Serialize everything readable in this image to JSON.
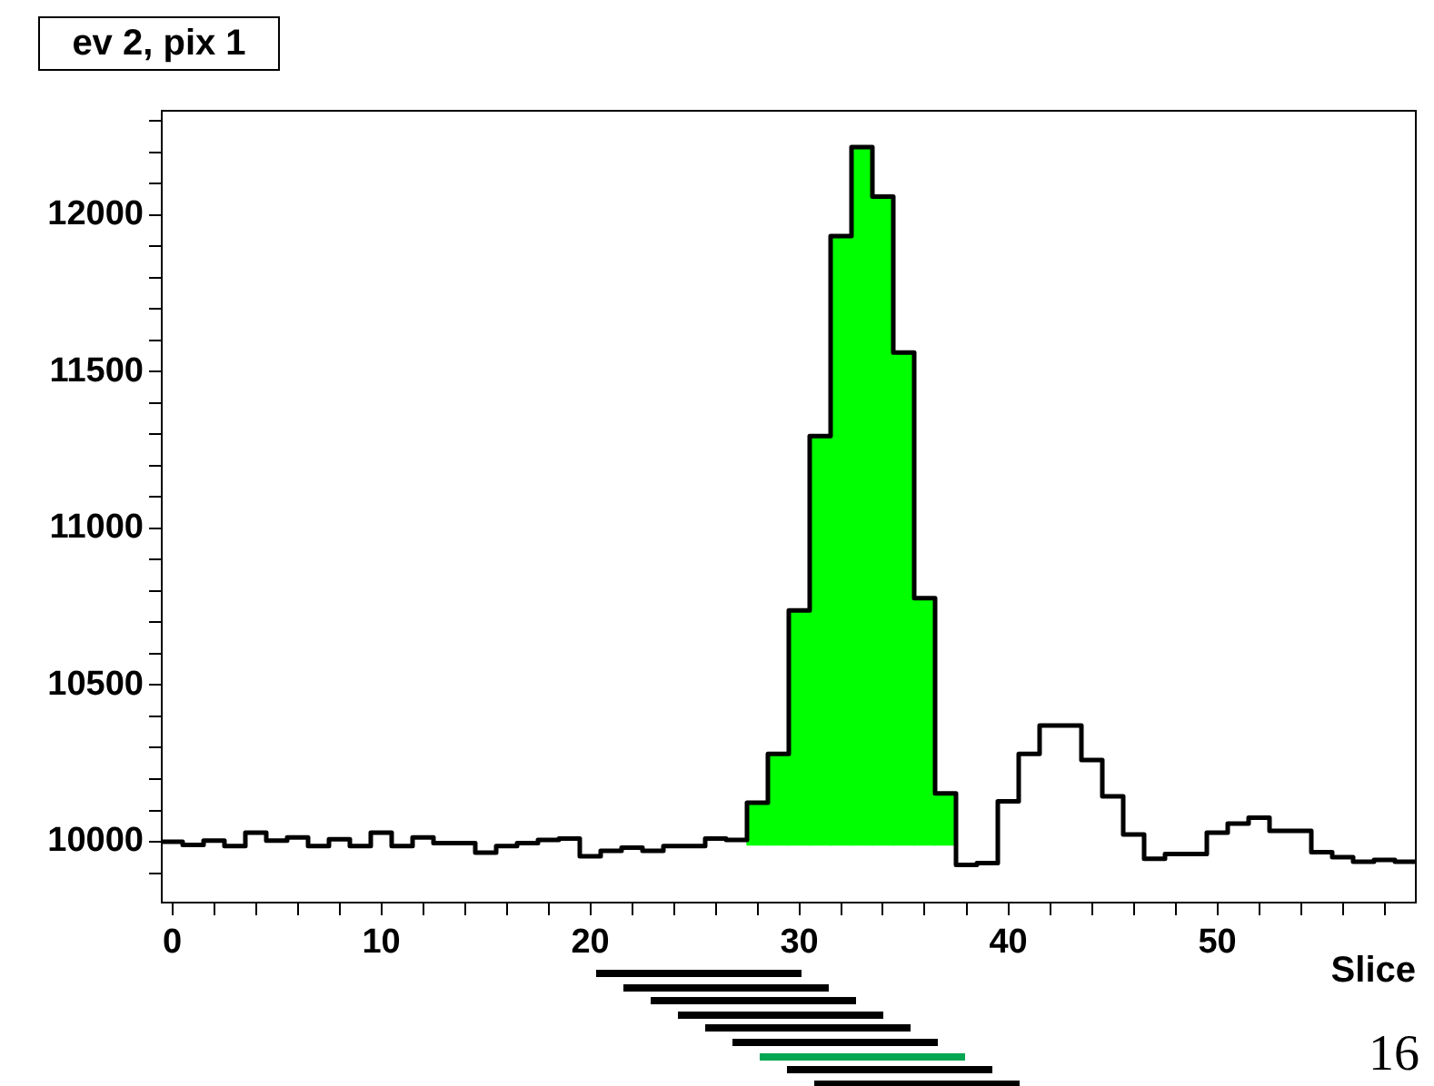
{
  "chart_data": {
    "type": "histogram",
    "title": "ev 2, pix 1",
    "xlabel": "Slice",
    "annotations": [
      "16"
    ],
    "legend": false,
    "bins": [
      -0.5,
      0.5,
      1.5,
      2.5,
      3.5,
      4.5,
      5.5,
      6.5,
      7.5,
      8.5,
      9.5,
      10.5,
      11.5,
      12.5,
      13.5,
      14.5,
      15.5,
      16.5,
      17.5,
      18.5,
      19.5,
      20.5,
      21.5,
      22.5,
      23.5,
      24.5,
      25.5,
      26.5,
      27.5,
      28.5,
      29.5,
      30.5,
      31.5,
      32.5,
      33.5,
      34.5,
      35.5,
      36.5,
      37.5,
      38.5,
      39.5,
      40.5,
      41.5,
      42.5,
      43.5,
      44.5,
      45.5,
      46.5,
      47.5,
      48.5,
      49.5,
      50.5,
      51.5,
      52.5,
      53.5,
      54.5,
      55.5,
      56.5,
      57.5,
      58.5,
      59.5
    ],
    "xlim": [
      -0.5,
      59.5
    ],
    "xticks": [
      0,
      {
        "value": 2,
        "label": null
      },
      {
        "value": 4,
        "label": null
      },
      {
        "value": 6,
        "label": null
      },
      {
        "value": 8,
        "label": null
      },
      10,
      {
        "value": 12,
        "label": null
      },
      {
        "value": 14,
        "label": null
      },
      {
        "value": 16,
        "label": null
      },
      {
        "value": 18,
        "label": null
      },
      20,
      {
        "value": 22,
        "label": null
      },
      {
        "value": 24,
        "label": null
      },
      {
        "value": 26,
        "label": null
      },
      {
        "value": 28,
        "label": null
      },
      30,
      {
        "value": 32,
        "label": null
      },
      {
        "value": 34,
        "label": null
      },
      {
        "value": 36,
        "label": null
      },
      {
        "value": 38,
        "label": null
      },
      40,
      {
        "value": 42,
        "label": null
      },
      {
        "value": 44,
        "label": null
      },
      {
        "value": 46,
        "label": null
      },
      {
        "value": 48,
        "label": null
      },
      50,
      {
        "value": 52,
        "label": null
      },
      {
        "value": 54,
        "label": null
      },
      {
        "value": 56,
        "label": null
      },
      {
        "value": 58,
        "label": null
      }
    ],
    "ylim": [
      9806,
      12332
    ],
    "yticks": [
      {
        "value": 9900,
        "label": null
      },
      10000,
      {
        "value": 10100,
        "label": null
      },
      {
        "value": 10200,
        "label": null
      },
      {
        "value": 10300,
        "label": null
      },
      {
        "value": 10400,
        "label": null
      },
      10500,
      {
        "value": 10600,
        "label": null
      },
      {
        "value": 10700,
        "label": null
      },
      {
        "value": 10800,
        "label": null
      },
      {
        "value": 10900,
        "label": null
      },
      11000,
      {
        "value": 11100,
        "label": null
      },
      {
        "value": 11200,
        "label": null
      },
      {
        "value": 11300,
        "label": null
      },
      {
        "value": 11400,
        "label": null
      },
      11500,
      {
        "value": 11600,
        "label": null
      },
      {
        "value": 11700,
        "label": null
      },
      {
        "value": 11800,
        "label": null
      },
      {
        "value": 11900,
        "label": null
      },
      12000,
      {
        "value": 12100,
        "label": null
      },
      {
        "value": 12200,
        "label": null
      },
      {
        "value": 12300,
        "label": null
      }
    ],
    "series": [
      {
        "color": "#000000",
        "values": [
          10000,
          9990,
          10004,
          9986,
          10029,
          10004,
          10014,
          9986,
          10008,
          9986,
          10029,
          9986,
          10014,
          9996,
          9996,
          9965,
          9986,
          9996,
          10006,
          10010,
          9954,
          9971,
          9981,
          9971,
          9986,
          9986,
          10010,
          10006,
          10125,
          10280,
          10738,
          11294,
          11932,
          12216,
          12058,
          11561,
          10777,
          10154,
          9926,
          9932,
          10129,
          10280,
          10371,
          10371,
          10261,
          10145,
          10023,
          9946,
          9961,
          9961,
          10029,
          10058,
          10077,
          10035,
          10035,
          9967,
          9951,
          9936,
          9942,
          9936
        ]
      },
      {
        "type": "bar",
        "color": "#00ff00",
        "x": [
          28,
          29,
          30,
          31,
          32,
          33,
          34,
          35,
          36,
          37
        ],
        "base": [
          9990,
          9990,
          9990,
          9990,
          9990,
          9990,
          9990,
          9990,
          9990,
          9990
        ],
        "values": [
          135,
          290,
          748,
          1304,
          1942,
          2226,
          2068,
          1571,
          787,
          164
        ]
      }
    ]
  }
}
